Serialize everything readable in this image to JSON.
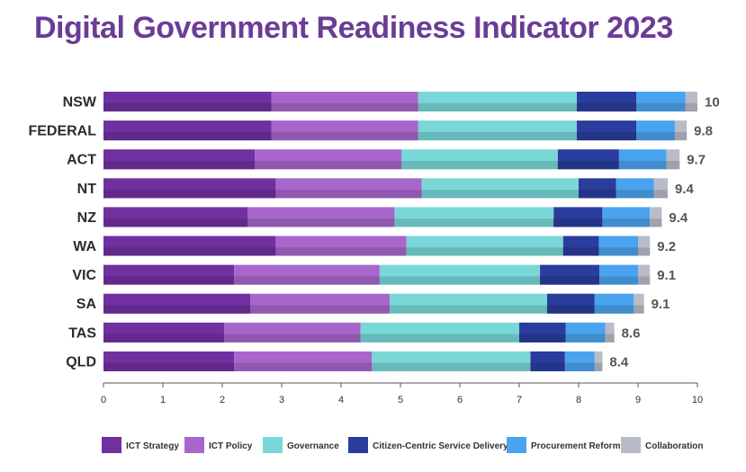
{
  "chart_data": {
    "type": "bar",
    "orientation": "horizontal",
    "stacked": true,
    "title": "Digital Government Readiness Indicator 2023",
    "categories": [
      "NSW",
      "FEDERAL",
      "ACT",
      "NT",
      "NZ",
      "WA",
      "VIC",
      "SA",
      "TAS",
      "QLD"
    ],
    "totals": [
      "10",
      "9.8",
      "9.7",
      "9.4",
      "9.4",
      "9.2",
      "9.1",
      "9.1",
      "8.6",
      "8.4"
    ],
    "series": [
      {
        "name": "ICT Strategy",
        "color": "#7030a0",
        "values": [
          2.83,
          2.83,
          2.55,
          2.9,
          2.43,
          2.9,
          2.2,
          2.47,
          2.03,
          2.2
        ]
      },
      {
        "name": "ICT Policy",
        "color": "#a866cc",
        "values": [
          2.47,
          2.47,
          2.47,
          2.46,
          2.47,
          2.2,
          2.45,
          2.35,
          2.3,
          2.32
        ]
      },
      {
        "name": "Governance",
        "color": "#79d7d7",
        "values": [
          2.67,
          2.67,
          2.63,
          2.64,
          2.68,
          2.64,
          2.7,
          2.65,
          2.67,
          2.67
        ]
      },
      {
        "name": "Citizen-Centric Service Delivery",
        "color": "#2a3c9c",
        "values": [
          1.0,
          1.0,
          1.03,
          0.63,
          0.82,
          0.6,
          1.0,
          0.8,
          0.78,
          0.58
        ]
      },
      {
        "name": "Procurement Reform",
        "color": "#4aa3ee",
        "values": [
          0.83,
          0.65,
          0.8,
          0.64,
          0.8,
          0.66,
          0.65,
          0.66,
          0.67,
          0.5
        ]
      },
      {
        "name": "Collaboration",
        "color": "#b9bcc8",
        "values": [
          0.2,
          0.2,
          0.22,
          0.23,
          0.2,
          0.2,
          0.2,
          0.17,
          0.15,
          0.13
        ]
      }
    ],
    "xlim": [
      0,
      10
    ],
    "x_ticks": [
      "0",
      "1",
      "2",
      "3",
      "4",
      "5",
      "6",
      "7",
      "8",
      "9",
      "10"
    ],
    "legend_position": "bottom",
    "grid": false
  }
}
